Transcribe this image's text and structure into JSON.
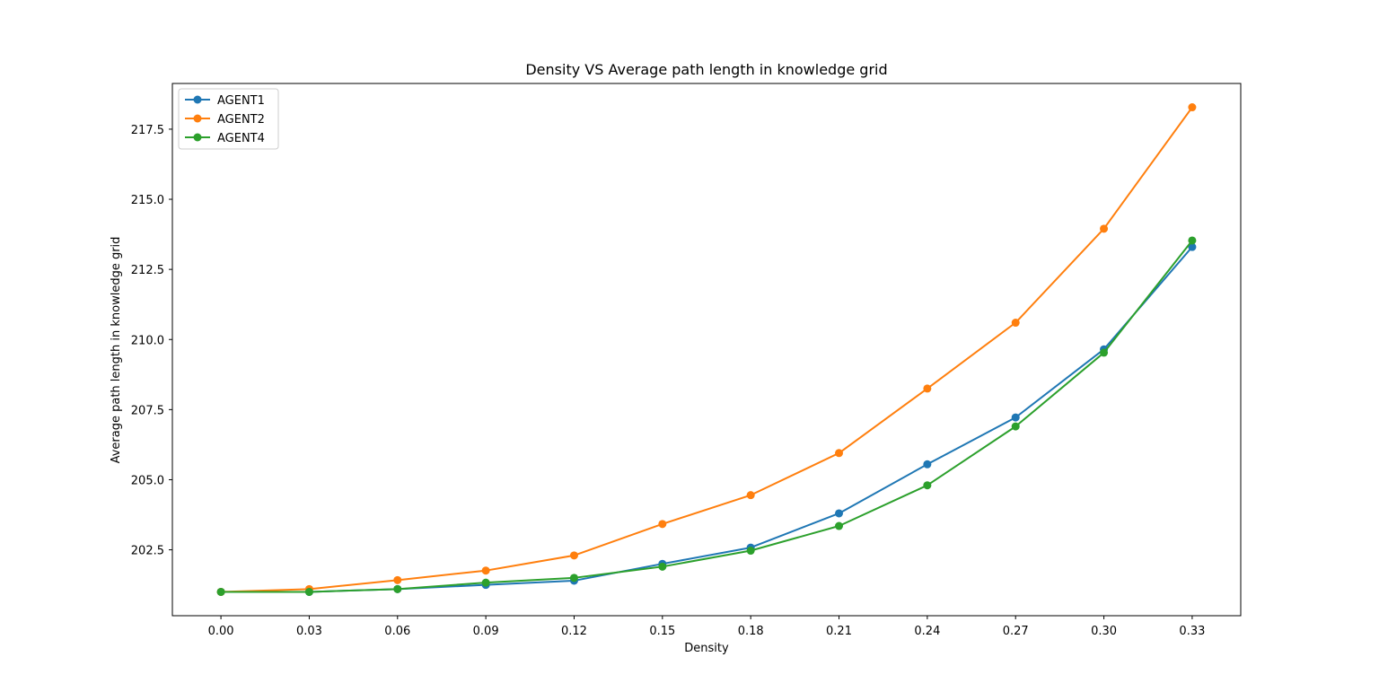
{
  "chart_data": {
    "type": "line",
    "title": "Density VS Average path length in knowledge grid",
    "xlabel": "Density",
    "ylabel": "Average path length in knowledge grid",
    "x": [
      0.0,
      0.03,
      0.06,
      0.09,
      0.12,
      0.15,
      0.18,
      0.21,
      0.24,
      0.27,
      0.3,
      0.33
    ],
    "x_tick_labels": [
      "0.00",
      "0.03",
      "0.06",
      "0.09",
      "0.12",
      "0.15",
      "0.18",
      "0.21",
      "0.24",
      "0.27",
      "0.30",
      "0.33"
    ],
    "y_ticks": [
      202.5,
      205.0,
      207.5,
      210.0,
      212.5,
      215.0,
      217.5
    ],
    "y_tick_labels": [
      "202.5",
      "205.0",
      "207.5",
      "210.0",
      "212.5",
      "215.0",
      "217.5"
    ],
    "xlim": [
      -0.0165,
      0.3465
    ],
    "ylim": [
      200.15,
      219.13
    ],
    "grid": false,
    "legend_position": "upper left",
    "series": [
      {
        "name": " AGENT1",
        "color": "#1f77b4",
        "marker": "circle",
        "values": [
          201.0,
          201.0,
          201.1,
          201.25,
          201.4,
          202.0,
          202.58,
          203.8,
          205.55,
          207.22,
          209.65,
          213.3
        ]
      },
      {
        "name": "AGENT2",
        "color": "#ff7f0e",
        "marker": "circle",
        "values": [
          201.0,
          201.1,
          201.42,
          201.76,
          202.3,
          203.42,
          204.45,
          205.95,
          208.25,
          210.6,
          213.95,
          218.28
        ]
      },
      {
        "name": "AGENT4",
        "color": "#2ca02c",
        "marker": "circle",
        "values": [
          201.0,
          201.0,
          201.1,
          201.33,
          201.5,
          201.9,
          202.47,
          203.35,
          204.8,
          206.9,
          209.53,
          213.53
        ]
      }
    ]
  }
}
